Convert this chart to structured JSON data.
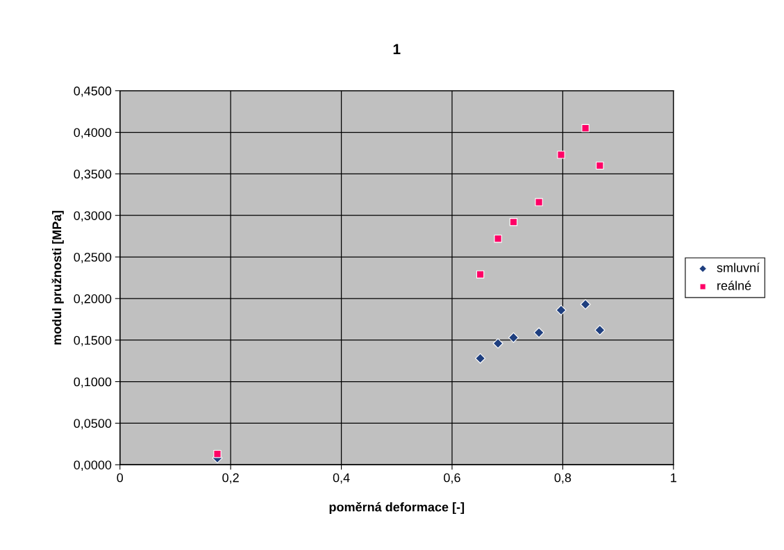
{
  "chart_data": {
    "type": "scatter",
    "title": "1",
    "xlabel": "poměrná deformace [-]",
    "ylabel": "modul pružnosti [MPa]",
    "xlim": [
      0,
      1
    ],
    "xticks": [
      0,
      {
        "value": 0.2,
        "label": "0,2"
      },
      {
        "value": 0.4,
        "label": "0,4"
      },
      {
        "value": 0.6,
        "label": "0,6"
      },
      {
        "value": 0.8,
        "label": "0,8"
      },
      1
    ],
    "ylim": [
      0,
      0.45
    ],
    "yticks": [
      {
        "value": 0,
        "label": "0,0000"
      },
      {
        "value": 0.05,
        "label": "0,0500"
      },
      {
        "value": 0.1,
        "label": "0,1000"
      },
      {
        "value": 0.15,
        "label": "0,1500"
      },
      {
        "value": 0.2,
        "label": "0,2000"
      },
      {
        "value": 0.25,
        "label": "0,2500"
      },
      {
        "value": 0.3,
        "label": "0,3000"
      },
      {
        "value": 0.35,
        "label": "0,3500"
      },
      {
        "value": 0.4,
        "label": "0,4000"
      },
      {
        "value": 0.45,
        "label": "0,4500"
      }
    ],
    "grid": true,
    "legend": "right",
    "series": [
      {
        "name": "smluvní",
        "color": "#1f3f7f",
        "marker": "diamond",
        "x": [
          0.176,
          0.651,
          0.683,
          0.711,
          0.757,
          0.797,
          0.841,
          0.867
        ],
        "values": [
          0.008,
          0.128,
          0.146,
          0.153,
          0.159,
          0.186,
          0.193,
          0.162
        ]
      },
      {
        "name": "reálné",
        "color": "#ff0066",
        "marker": "square",
        "x": [
          0.176,
          0.651,
          0.683,
          0.711,
          0.757,
          0.797,
          0.841,
          0.867
        ],
        "values": [
          0.013,
          0.229,
          0.272,
          0.292,
          0.316,
          0.373,
          0.405,
          0.36
        ]
      }
    ]
  }
}
